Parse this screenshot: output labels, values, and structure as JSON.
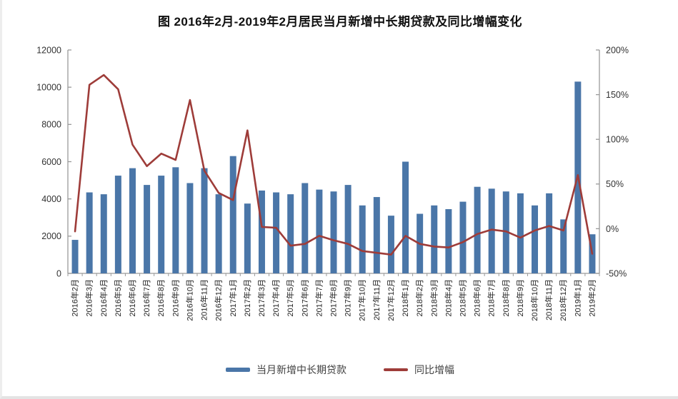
{
  "title": "图 2016年2月-2019年2月居民当月新增中长期贷款及同比增幅变化",
  "chart_data": {
    "type": "combo",
    "subtype": "bar+line",
    "title": "图 2016年2月-2019年2月居民当月新增中长期贷款及同比增幅变化",
    "categories": [
      "2016年2月",
      "2016年3月",
      "2016年4月",
      "2016年5月",
      "2016年6月",
      "2016年7月",
      "2016年8月",
      "2016年9月",
      "2016年10月",
      "2016年11月",
      "2016年12月",
      "2017年1月",
      "2017年2月",
      "2017年3月",
      "2017年4月",
      "2017年5月",
      "2017年6月",
      "2017年7月",
      "2017年8月",
      "2017年9月",
      "2017年10月",
      "2017年11月",
      "2017年12月",
      "2018年1月",
      "2018年2月",
      "2018年3月",
      "2018年4月",
      "2018年5月",
      "2018年6月",
      "2018年7月",
      "2018年8月",
      "2018年9月",
      "2018年10月",
      "2018年11月",
      "2018年12月",
      "2019年1月",
      "2019年2月"
    ],
    "series": [
      {
        "name": "当月新增中长期贷款",
        "type": "bar",
        "axis": "left",
        "color": "#4a76a8",
        "values": [
          1800,
          4350,
          4250,
          5250,
          5650,
          4750,
          5250,
          5700,
          4850,
          5650,
          4250,
          6300,
          3750,
          4450,
          4350,
          4250,
          4850,
          4500,
          4400,
          4750,
          3650,
          4100,
          3100,
          6000,
          3200,
          3650,
          3450,
          3850,
          4650,
          4550,
          4400,
          4300,
          3650,
          4300,
          2900,
          10300,
          2100
        ]
      },
      {
        "name": "同比增幅",
        "type": "line",
        "axis": "right",
        "unit": "%",
        "color": "#9e3c39",
        "values": [
          -3,
          161,
          172,
          156,
          94,
          70,
          84,
          77,
          144,
          65,
          40,
          32,
          110,
          2,
          1,
          -19,
          -17,
          -8,
          -13,
          -17,
          -25,
          -27,
          -29,
          -8,
          -17,
          -20,
          -21,
          -15,
          -6,
          -1,
          -3,
          -10,
          -2,
          3,
          -2,
          60,
          -28
        ]
      }
    ],
    "left_axis": {
      "min": 0,
      "max": 12000,
      "step": 2000,
      "tick_labels": [
        "0",
        "2000",
        "4000",
        "6000",
        "8000",
        "10000",
        "12000"
      ]
    },
    "right_axis": {
      "min": -50,
      "max": 200,
      "step": 50,
      "tick_labels": [
        "-50%",
        "0%",
        "50%",
        "100%",
        "150%",
        "200%"
      ]
    },
    "grid": false,
    "legend_position": "bottom"
  }
}
